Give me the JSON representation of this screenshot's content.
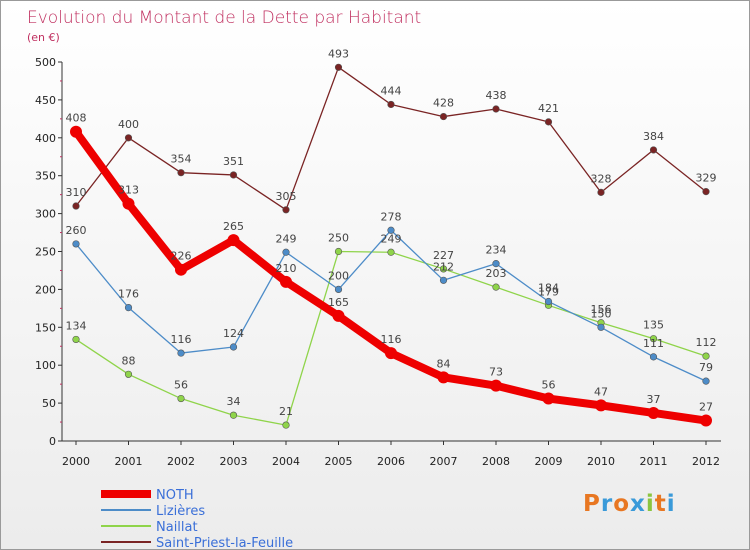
{
  "chart_data": {
    "type": "line",
    "title": "Evolution du Montant de la Dette par Habitant",
    "subtitle": "(en €)",
    "xlabel": "",
    "ylabel": "",
    "ylim": [
      0,
      500
    ],
    "yticks": [
      0,
      50,
      100,
      150,
      200,
      250,
      300,
      350,
      400,
      450,
      500
    ],
    "categories": [
      "2000",
      "2001",
      "2002",
      "2003",
      "2004",
      "2005",
      "2006",
      "2007",
      "2008",
      "2009",
      "2010",
      "2011",
      "2012"
    ],
    "legend_position": "bottom-left",
    "grid": false,
    "series": [
      {
        "name": "NOTH",
        "color": "#ee0000",
        "values": [
          408,
          313,
          226,
          265,
          210,
          165,
          116,
          84,
          73,
          56,
          47,
          37,
          27
        ]
      },
      {
        "name": "Lizières",
        "color": "#4d8cc8",
        "values": [
          260,
          176,
          116,
          124,
          249,
          200,
          278,
          212,
          234,
          184,
          150,
          111,
          79
        ]
      },
      {
        "name": "Naillat",
        "color": "#8fd44a",
        "values": [
          134,
          88,
          56,
          34,
          21,
          250,
          249,
          227,
          203,
          179,
          156,
          135,
          112
        ]
      },
      {
        "name": "Saint-Priest-la-Feuille",
        "color": "#7a2424",
        "values": [
          310,
          400,
          354,
          351,
          305,
          493,
          444,
          428,
          438,
          421,
          328,
          384,
          329
        ]
      }
    ]
  },
  "logo": {
    "letters": [
      "P",
      "r",
      "o",
      "x",
      "i",
      "t",
      "i"
    ],
    "colors": [
      "#e87722",
      "#3a9ad9",
      "#e87722",
      "#3a9ad9",
      "#8bc53f",
      "#e87722",
      "#3a9ad9"
    ]
  }
}
